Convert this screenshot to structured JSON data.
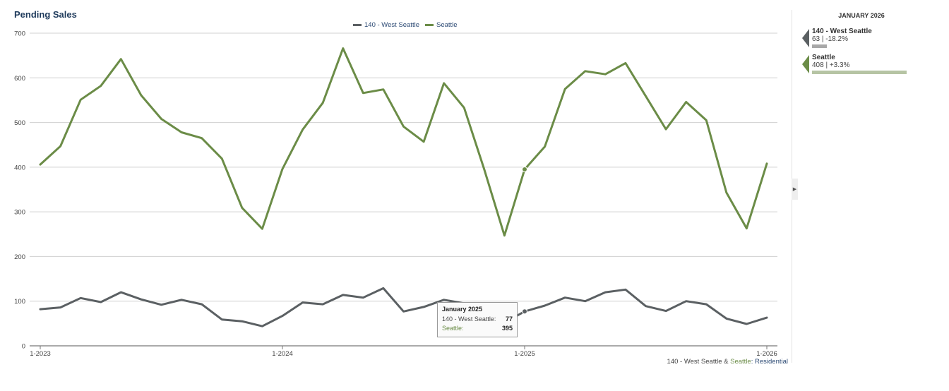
{
  "chart_data": {
    "type": "line",
    "title": "Pending Sales",
    "x": [
      "1-2023",
      "2-2023",
      "3-2023",
      "4-2023",
      "5-2023",
      "6-2023",
      "7-2023",
      "8-2023",
      "9-2023",
      "10-2023",
      "11-2023",
      "12-2023",
      "1-2024",
      "2-2024",
      "3-2024",
      "4-2024",
      "5-2024",
      "6-2024",
      "7-2024",
      "8-2024",
      "9-2024",
      "10-2024",
      "11-2024",
      "12-2024",
      "1-2025",
      "2-2025",
      "3-2025",
      "4-2025",
      "5-2025",
      "6-2025",
      "7-2025",
      "8-2025",
      "9-2025",
      "10-2025",
      "11-2025",
      "12-2025",
      "1-2026"
    ],
    "x_tick_labels": [
      "1-2023",
      "1-2024",
      "1-2025",
      "1-2026"
    ],
    "ylim": [
      0,
      700
    ],
    "y_ticks": [
      0,
      100,
      200,
      300,
      400,
      500,
      600,
      700
    ],
    "grid": true,
    "legend_position": "top-center",
    "series": [
      {
        "name": "140 - West Seattle",
        "color": "#5b6063",
        "values": [
          82,
          86,
          107,
          98,
          120,
          104,
          92,
          103,
          93,
          59,
          55,
          44,
          67,
          97,
          93,
          114,
          108,
          129,
          77,
          87,
          103,
          95,
          82,
          52,
          77,
          90,
          108,
          100,
          120,
          126,
          89,
          78,
          100,
          93,
          61,
          49,
          63
        ]
      },
      {
        "name": "Seattle",
        "color": "#6b8c47",
        "values": [
          406,
          447,
          551,
          582,
          642,
          561,
          508,
          478,
          465,
          419,
          309,
          262,
          396,
          484,
          544,
          666,
          566,
          574,
          491,
          457,
          588,
          533,
          395,
          247,
          395,
          446,
          575,
          615,
          608,
          633,
          559,
          485,
          546,
          505,
          343,
          263,
          408
        ]
      }
    ],
    "highlight_index": 24
  },
  "tooltip": {
    "title": "January 2025",
    "rows": [
      {
        "label": "140 - West Seattle:",
        "value": "77",
        "color": "#444444"
      },
      {
        "label": "Seattle:",
        "value": "395",
        "color": "#6b8c47"
      }
    ]
  },
  "side_panel": {
    "month": "JANUARY 2026",
    "entries": [
      {
        "name": "140 - West Seattle",
        "value": "63 | -18.2%",
        "color": "#5b6063",
        "bar_color": "#a8a8a8",
        "bar_value": 63
      },
      {
        "name": "Seattle",
        "value": "408 | +3.3%",
        "color": "#6b8c47",
        "bar_color": "#b6c4a4",
        "bar_value": 408
      }
    ]
  },
  "footer": {
    "area": "140 - West Seattle",
    "amp": " & ",
    "city": "Seattle",
    "colon": ": ",
    "type": "Residential"
  }
}
